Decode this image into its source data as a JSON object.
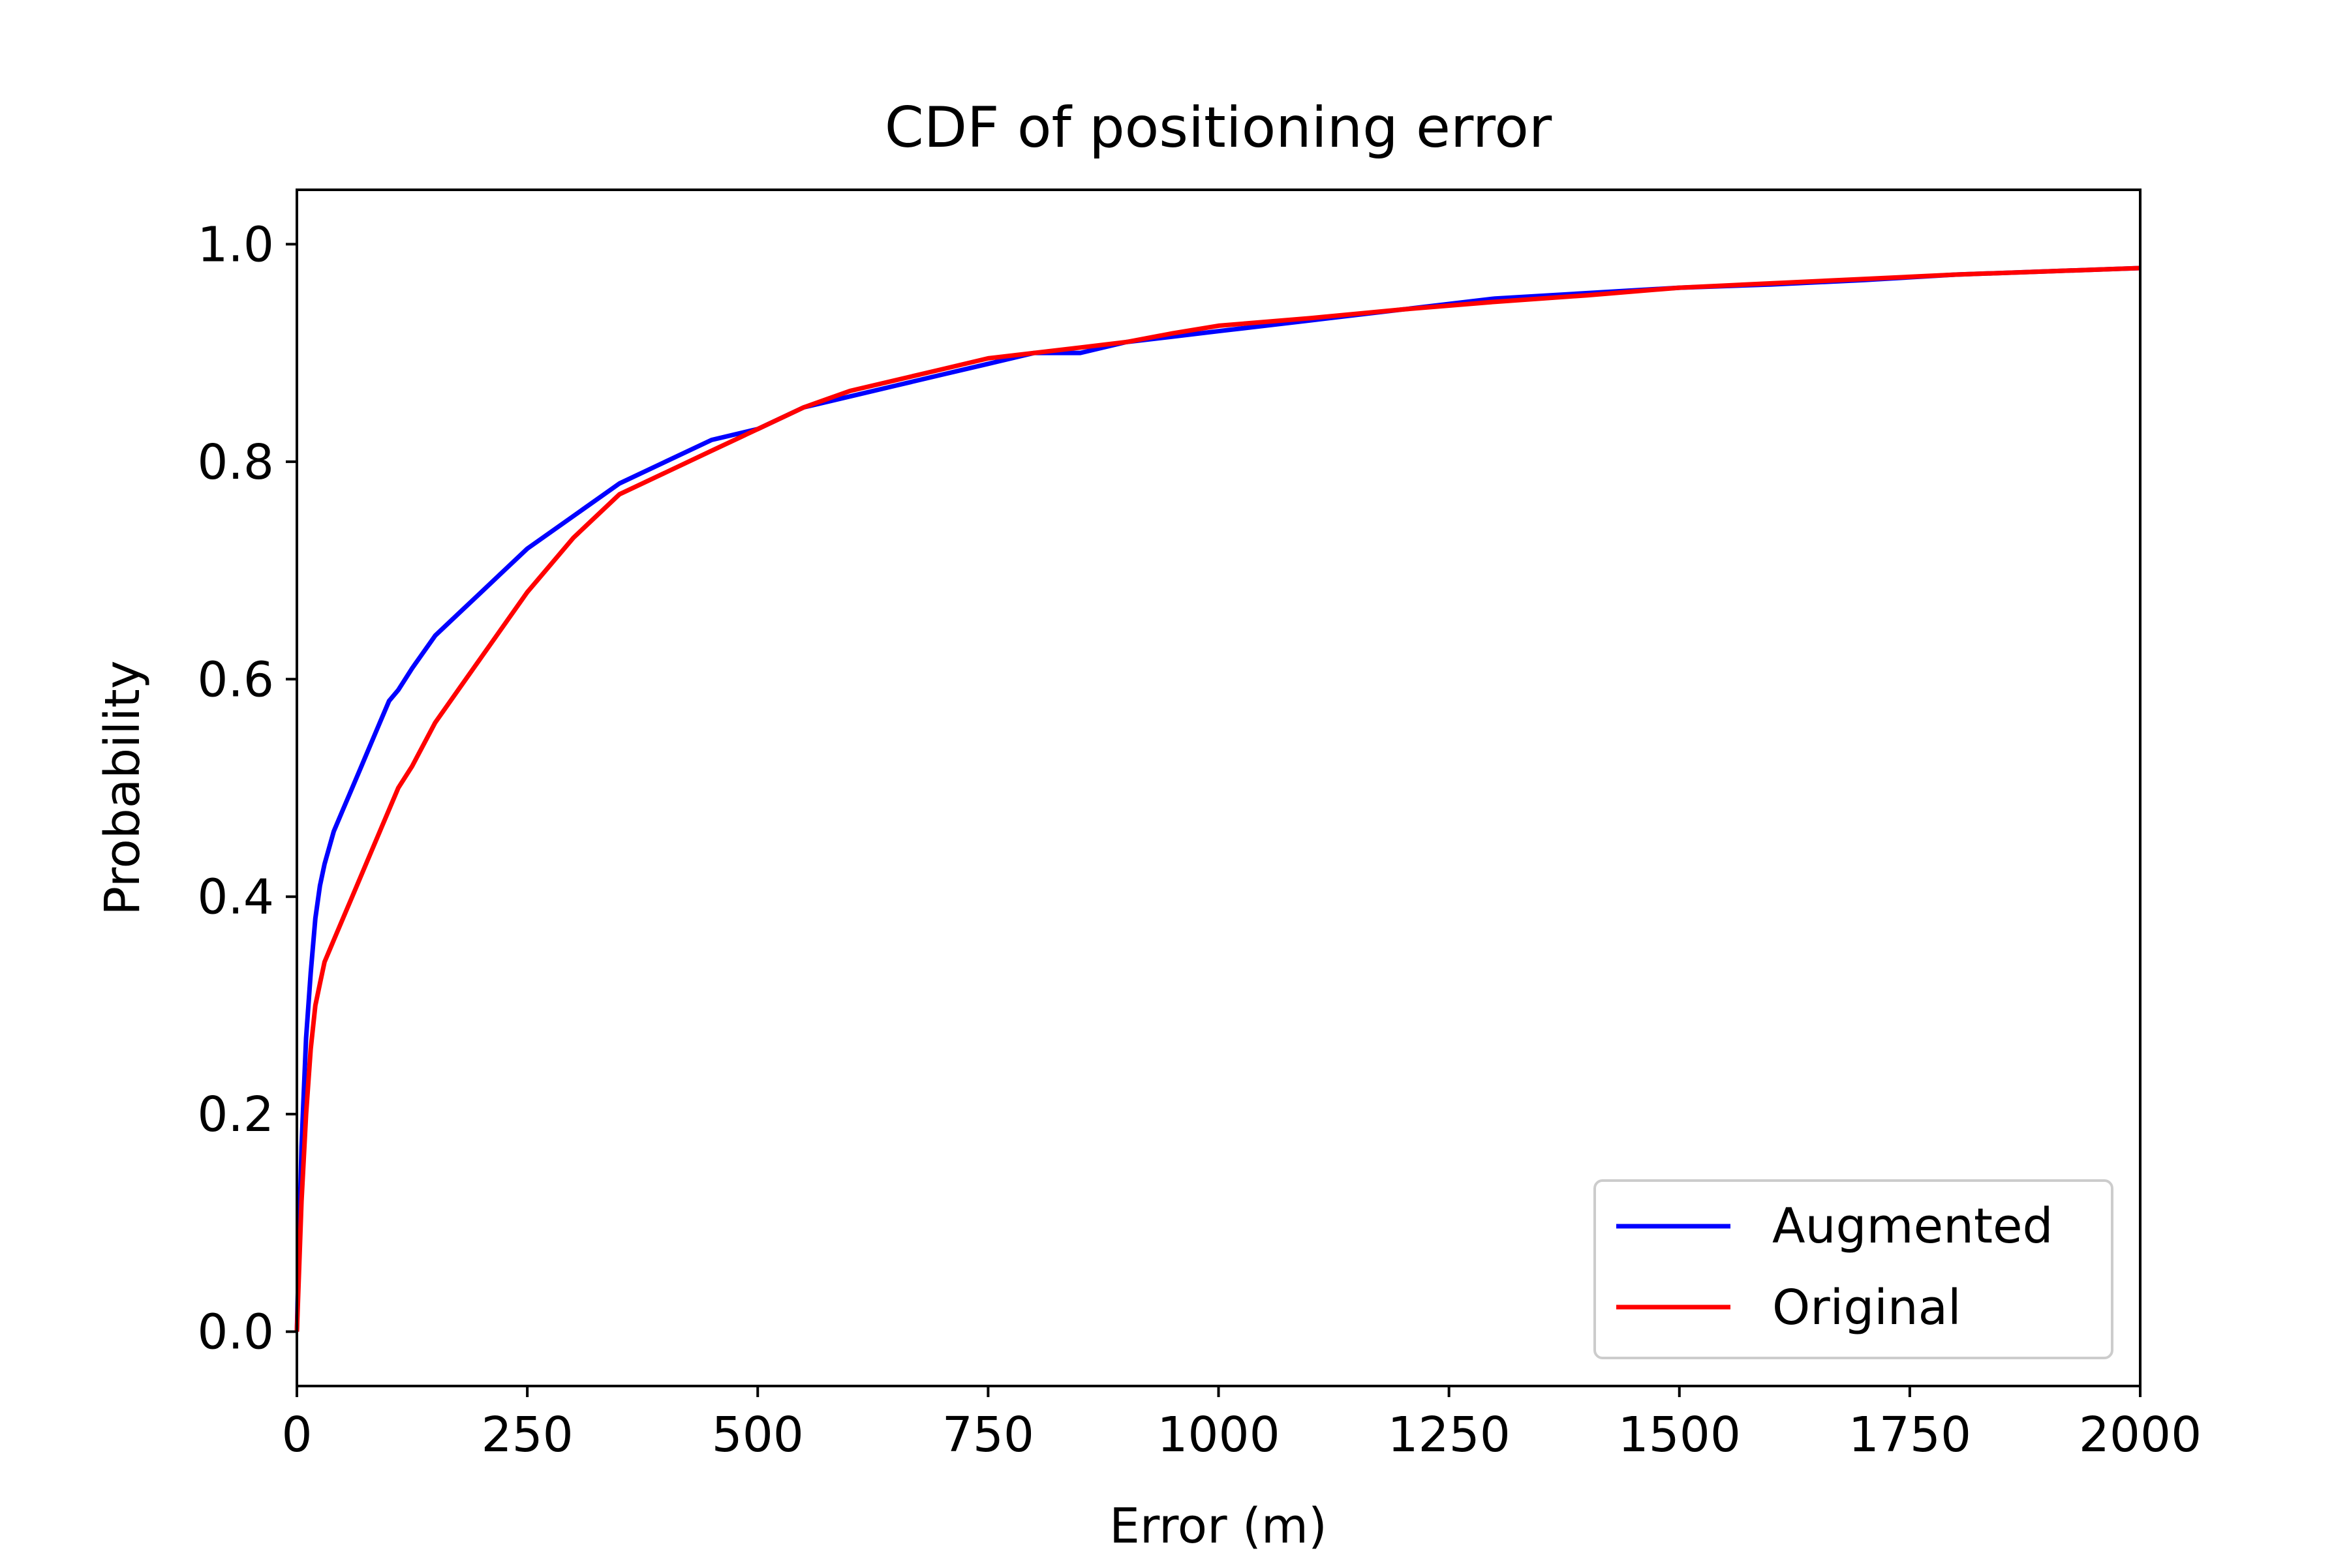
{
  "chart_data": {
    "type": "line",
    "title": "CDF of positioning error",
    "xlabel": "Error (m)",
    "ylabel": "Probability",
    "xlim": [
      0,
      2000
    ],
    "ylim": [
      -0.05,
      1.05
    ],
    "xticks": [
      0,
      250,
      500,
      750,
      1000,
      1250,
      1500,
      1750,
      2000
    ],
    "xtick_labels": [
      "0",
      "250",
      "500",
      "750",
      "1000",
      "1250",
      "1500",
      "1750",
      "2000"
    ],
    "yticks": [
      0.0,
      0.2,
      0.4,
      0.6,
      0.8,
      1.0
    ],
    "ytick_labels": [
      "0.0",
      "0.2",
      "0.4",
      "0.6",
      "0.8",
      "1.0"
    ],
    "grid": false,
    "legend_position": "lower-right",
    "series": [
      {
        "name": "Augmented",
        "color": "#0000ff",
        "x": [
          0,
          5,
          10,
          15,
          20,
          25,
          30,
          40,
          50,
          60,
          70,
          80,
          90,
          100,
          110,
          125,
          150,
          175,
          200,
          225,
          250,
          300,
          350,
          400,
          450,
          500,
          550,
          600,
          650,
          700,
          750,
          800,
          850,
          900,
          950,
          1000,
          1100,
          1200,
          1300,
          1400,
          1500,
          1600,
          1700,
          1800,
          1900,
          2000
        ],
        "y": [
          0.0,
          0.17,
          0.27,
          0.33,
          0.38,
          0.41,
          0.43,
          0.46,
          0.48,
          0.5,
          0.52,
          0.54,
          0.56,
          0.58,
          0.59,
          0.61,
          0.64,
          0.66,
          0.68,
          0.7,
          0.72,
          0.75,
          0.78,
          0.8,
          0.82,
          0.83,
          0.85,
          0.86,
          0.87,
          0.88,
          0.89,
          0.9,
          0.9,
          0.91,
          0.915,
          0.92,
          0.93,
          0.94,
          0.95,
          0.955,
          0.96,
          0.963,
          0.967,
          0.972,
          0.975,
          0.978
        ]
      },
      {
        "name": "Original",
        "color": "#ff0000",
        "x": [
          0,
          5,
          10,
          15,
          20,
          25,
          30,
          40,
          50,
          60,
          70,
          80,
          90,
          100,
          110,
          125,
          150,
          175,
          200,
          225,
          250,
          300,
          350,
          400,
          450,
          500,
          550,
          600,
          650,
          700,
          750,
          800,
          850,
          900,
          950,
          1000,
          1100,
          1200,
          1300,
          1400,
          1500,
          1600,
          1700,
          1800,
          1900,
          2000
        ],
        "y": [
          0.0,
          0.12,
          0.2,
          0.26,
          0.3,
          0.32,
          0.34,
          0.36,
          0.38,
          0.4,
          0.42,
          0.44,
          0.46,
          0.48,
          0.5,
          0.52,
          0.56,
          0.59,
          0.62,
          0.65,
          0.68,
          0.73,
          0.77,
          0.79,
          0.81,
          0.83,
          0.85,
          0.865,
          0.875,
          0.885,
          0.895,
          0.9,
          0.905,
          0.91,
          0.918,
          0.925,
          0.932,
          0.94,
          0.947,
          0.953,
          0.96,
          0.964,
          0.968,
          0.972,
          0.975,
          0.978
        ]
      }
    ]
  }
}
